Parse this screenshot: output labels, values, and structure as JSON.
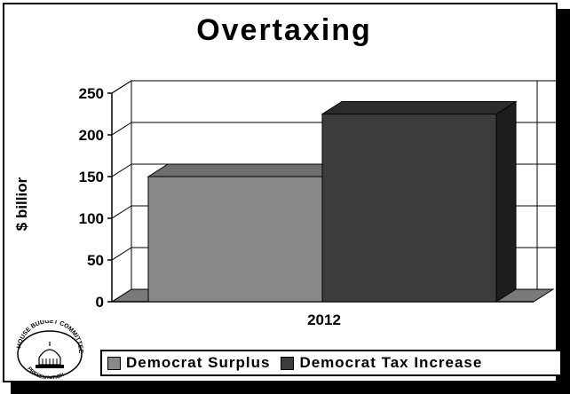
{
  "chart_data": {
    "type": "bar",
    "title": "Overtaxing",
    "xlabel": "",
    "ylabel": "$ billior",
    "categories": [
      "2012"
    ],
    "series": [
      {
        "name": "Democrat Surplus",
        "values": [
          150
        ],
        "color": "#888888"
      },
      {
        "name": "Democrat Tax Increase",
        "values": [
          225
        ],
        "color": "#3c3c3c"
      }
    ],
    "ylim": [
      0,
      250
    ],
    "yticks": [
      "0",
      "50",
      "100",
      "150",
      "200",
      "250"
    ],
    "grid": true,
    "legend": "bottom",
    "style": "3d"
  },
  "logo": {
    "text_top": "HOUSE BUDGET COMMITTEE",
    "text_bottom": "PRESENTATION",
    "icon": "capitol-dome-seal"
  }
}
